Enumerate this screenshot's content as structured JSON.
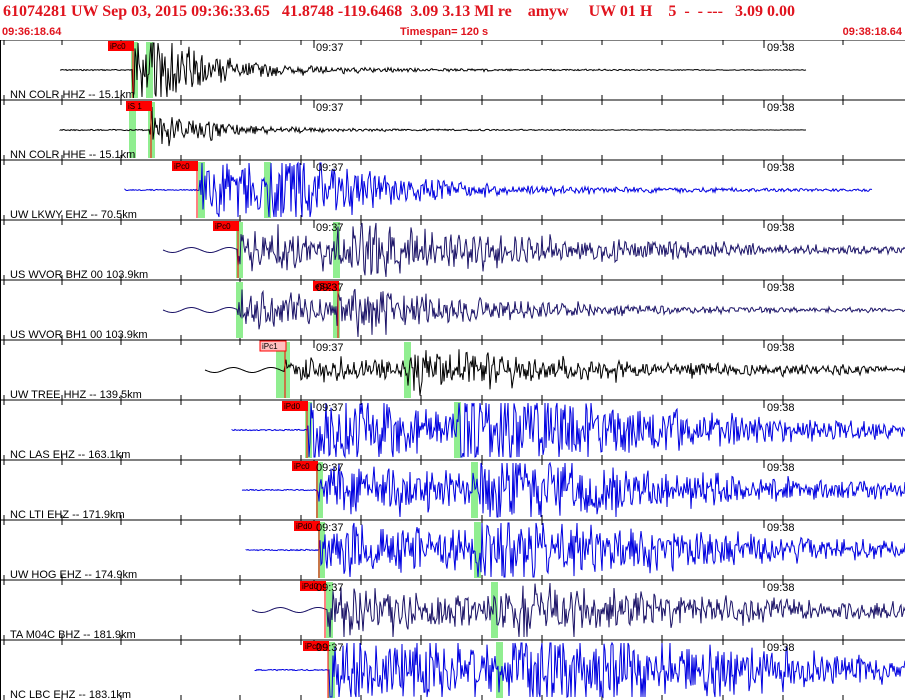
{
  "header": {
    "title": "61074281 UW Sep 03, 2015 09:36:33.65   41.8748 -119.6468  3.09 3.13 Ml re    amyw     UW 01 H    5  -  - ---   3.09 0.00",
    "start_time": "09:36:18.64",
    "timespan": "Timespan= 120 s",
    "end_time": "09:38:18.64"
  },
  "time_labels": [
    "09:37",
    "09:38"
  ],
  "colors": {
    "header_red": "#e0141e",
    "pick_red": "#ff0000",
    "pick_light": "#ffc0c0",
    "trace_blue": "#0000e0",
    "trace_navy": "#1c1468",
    "trace_black": "#000000",
    "phase_green": "#90ee90"
  },
  "traces": [
    {
      "label": "NN COLR HHZ -- 15.1km",
      "pick": "iPc0",
      "pick_style": "solid",
      "color": "black"
    },
    {
      "label": "NN COLR HHE -- 15.1km",
      "pick": "iS 1",
      "pick_style": "solid",
      "color": "black"
    },
    {
      "label": "UW LKWY EHZ -- 70.5km",
      "pick": "iPc0",
      "pick_style": "solid",
      "color": "blue"
    },
    {
      "label": "US WVOR BHZ 00 103.9km",
      "pick": "iPc0",
      "pick_style": "solid",
      "color": "navy"
    },
    {
      "label": "US WVOR BH1 00 103.9km",
      "pick": "eS 2",
      "pick_style": "solid",
      "color": "navy"
    },
    {
      "label": "UW TREE HHZ -- 139.5km",
      "pick": "iPc1",
      "pick_style": "light",
      "color": "black"
    },
    {
      "label": "NC LAS EHZ -- 163.1km",
      "pick": "iPd0",
      "pick_style": "solid",
      "color": "blue"
    },
    {
      "label": "NC LTI EHZ -- 171.9km",
      "pick": "iPc0",
      "pick_style": "solid",
      "color": "blue"
    },
    {
      "label": "UW HOG EHZ -- 174.9km",
      "pick": "iPd0",
      "pick_style": "solid",
      "color": "blue"
    },
    {
      "label": "TA M04C BHZ -- 181.9km",
      "pick": "iPd0",
      "pick_style": "solid",
      "color": "navy"
    },
    {
      "label": "NC LBC EHZ -- 183.1km",
      "pick": "iPc0",
      "pick_style": "solid",
      "color": "blue"
    }
  ]
}
